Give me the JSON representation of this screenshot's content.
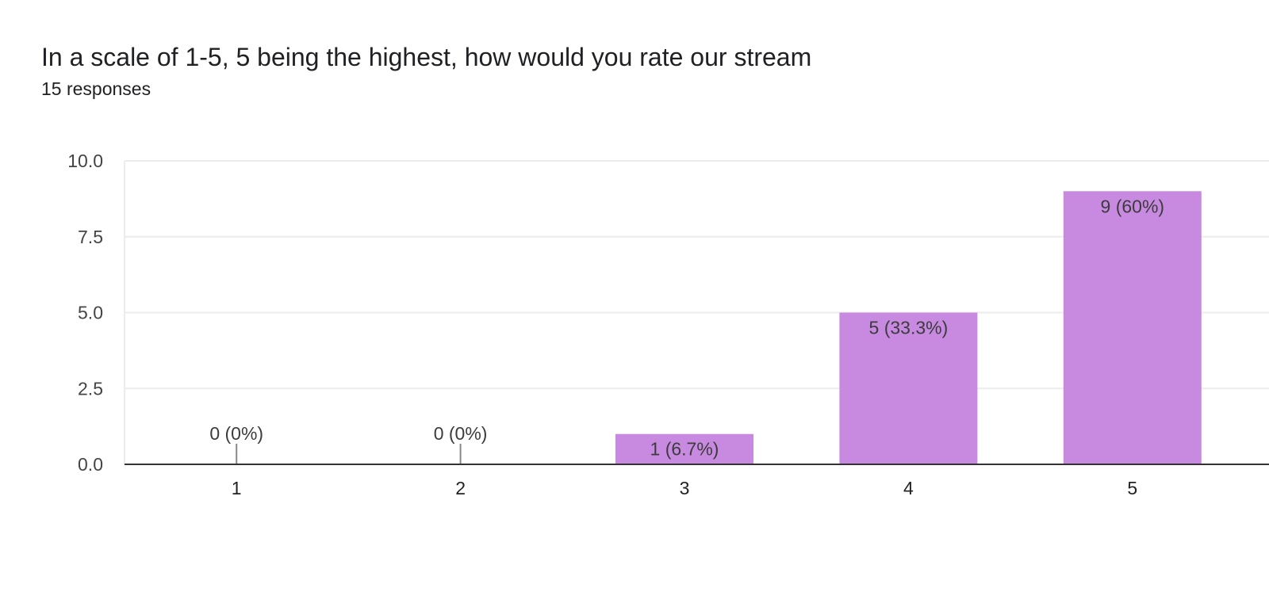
{
  "header": {
    "title": "In a scale of 1-5, 5 being the highest, how would you rate our stream",
    "subtitle": "15 responses"
  },
  "colors": {
    "bar": "#c78ae0",
    "grid": "#ececec",
    "axis": "#333333",
    "tick_text": "#444444",
    "label_text": "#3c3c3c",
    "stub": "#888888"
  },
  "chart_data": {
    "type": "bar",
    "categories": [
      "1",
      "2",
      "3",
      "4",
      "5"
    ],
    "values": [
      0,
      0,
      1,
      5,
      9
    ],
    "data_labels": [
      "0 (0%)",
      "0 (0%)",
      "1 (6.7%)",
      "5 (33.3%)",
      "9 (60%)"
    ],
    "yticks": [
      "0.0",
      "2.5",
      "5.0",
      "7.5",
      "10.0"
    ],
    "ylim": [
      0,
      10
    ],
    "grid": true,
    "legend": "none"
  }
}
